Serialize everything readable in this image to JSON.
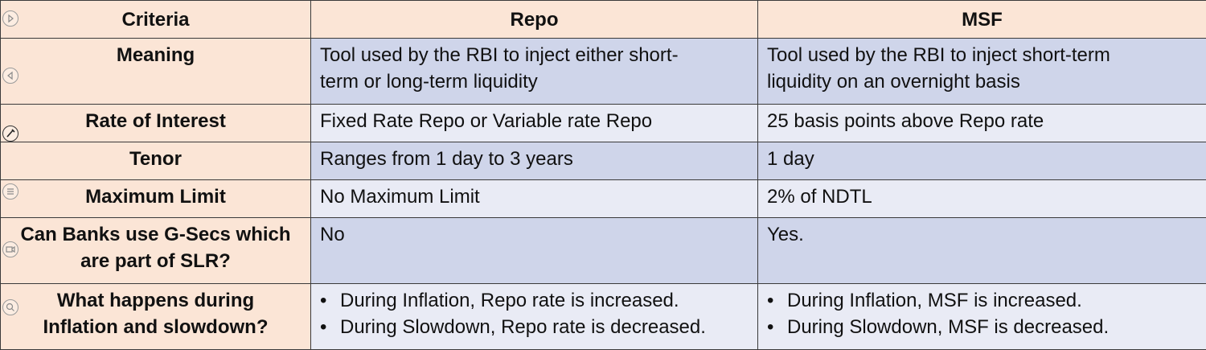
{
  "table": {
    "headers": [
      "Criteria",
      "Repo",
      "MSF"
    ],
    "rows": [
      {
        "criteria_lines": [
          "Meaning"
        ],
        "repo_lines": [
          "Tool used by the RBI to inject either short-",
          "term or long-term liquidity"
        ],
        "msf_lines": [
          "Tool used by the RBI to inject short-term",
          "liquidity on an overnight basis"
        ]
      },
      {
        "criteria_lines": [
          "Rate of Interest"
        ],
        "repo_lines": [
          "Fixed Rate Repo or Variable rate Repo"
        ],
        "msf_lines": [
          "25 basis points above Repo rate"
        ]
      },
      {
        "criteria_lines": [
          "Tenor"
        ],
        "repo_lines": [
          "Ranges from 1 day to 3 years"
        ],
        "msf_lines": [
          "1 day"
        ]
      },
      {
        "criteria_lines": [
          "Maximum Limit"
        ],
        "repo_lines": [
          "No Maximum Limit"
        ],
        "msf_lines": [
          "2% of NDTL"
        ]
      },
      {
        "criteria_lines": [
          "Can Banks use G-Secs which",
          "are part of SLR?"
        ],
        "repo_lines": [
          "No"
        ],
        "msf_lines": [
          "Yes."
        ]
      },
      {
        "criteria_lines": [
          "What happens during",
          "Inflation and slowdown?"
        ],
        "bullet": "•",
        "repo_bullets": [
          "During Inflation, Repo rate is increased.",
          "During Slowdown, Repo rate is decreased."
        ],
        "msf_bullets": [
          "During Inflation, MSF is increased.",
          "During Slowdown, MSF is decreased."
        ]
      }
    ]
  },
  "side_toolbar": {
    "icons": [
      "play-next-icon",
      "play-previous-icon",
      "pen-icon",
      "menu-icon",
      "video-icon",
      "zoom-icon"
    ]
  }
}
